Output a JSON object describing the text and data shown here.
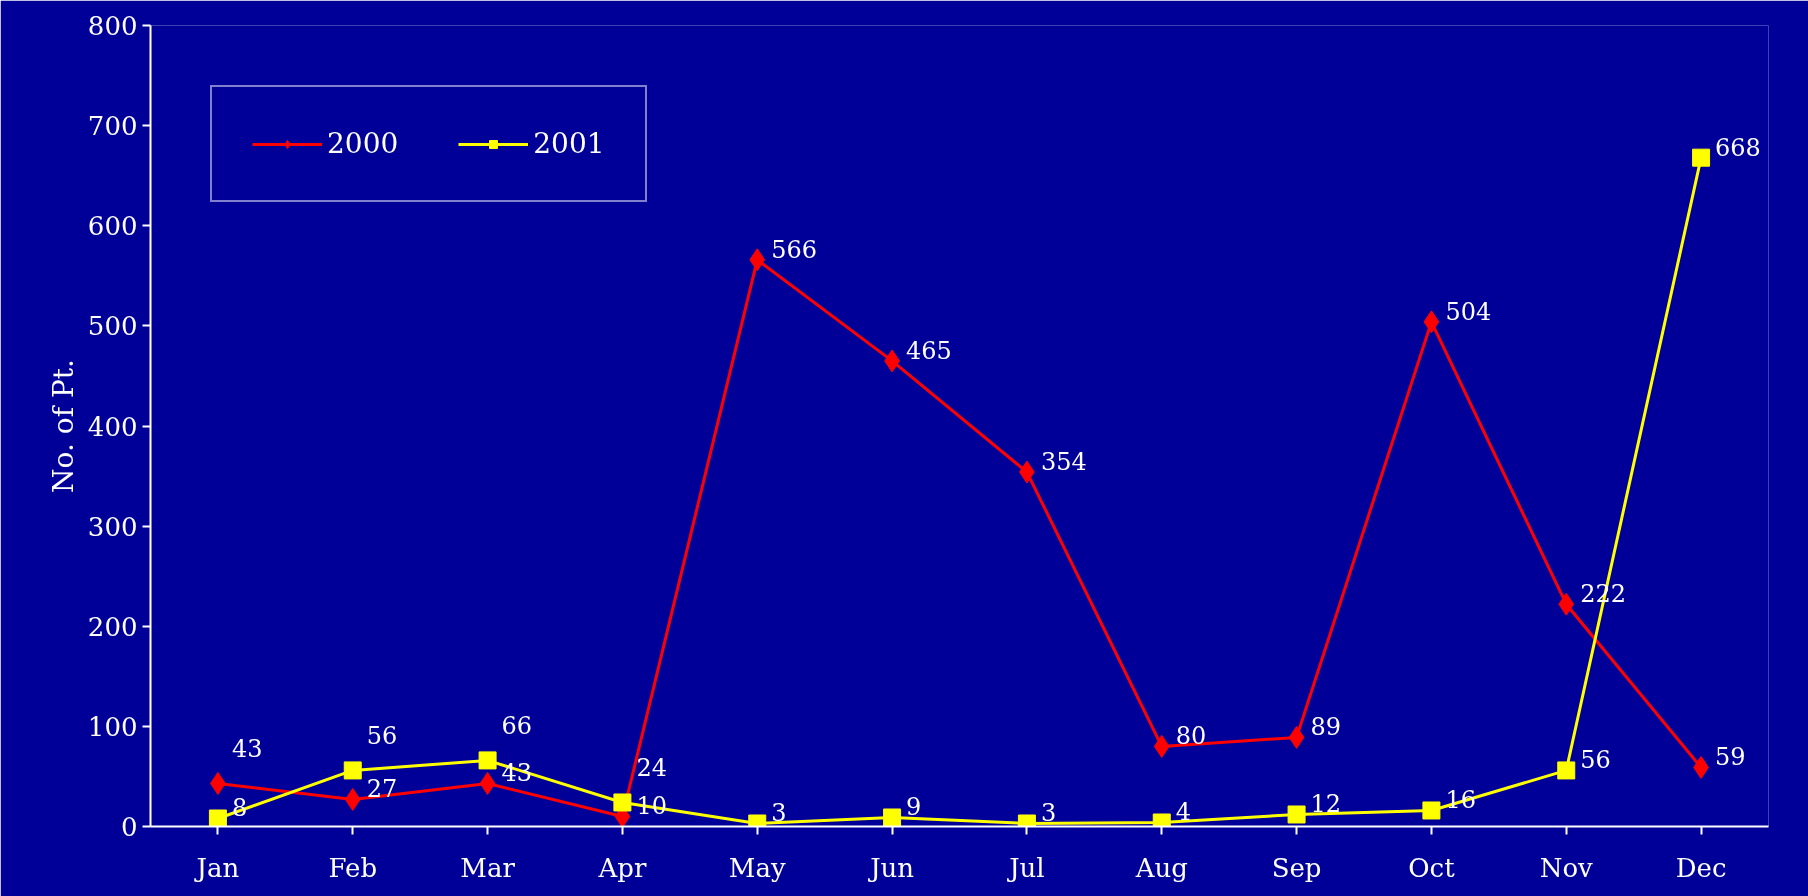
{
  "chart_data": {
    "type": "line",
    "ylabel": "No. of Pt.",
    "categories": [
      "Jan",
      "Feb",
      "Mar",
      "Apr",
      "May",
      "Jun",
      "Jul",
      "Aug",
      "Sep",
      "Oct",
      "Nov",
      "Dec"
    ],
    "series": [
      {
        "name": "2000",
        "color": "#ff0000",
        "marker": "diamond",
        "values": [
          43,
          27,
          43,
          10,
          566,
          465,
          354,
          80,
          89,
          504,
          222,
          59
        ]
      },
      {
        "name": "2001",
        "color": "#ffff00",
        "marker": "square",
        "values": [
          8,
          56,
          66,
          24,
          3,
          9,
          3,
          4,
          12,
          16,
          56,
          668
        ]
      }
    ],
    "ylim": [
      0,
      800
    ],
    "yticks": [
      0,
      100,
      200,
      300,
      400,
      500,
      600,
      700,
      800
    ],
    "grid": false,
    "legend": "top left",
    "data_labels": true
  }
}
